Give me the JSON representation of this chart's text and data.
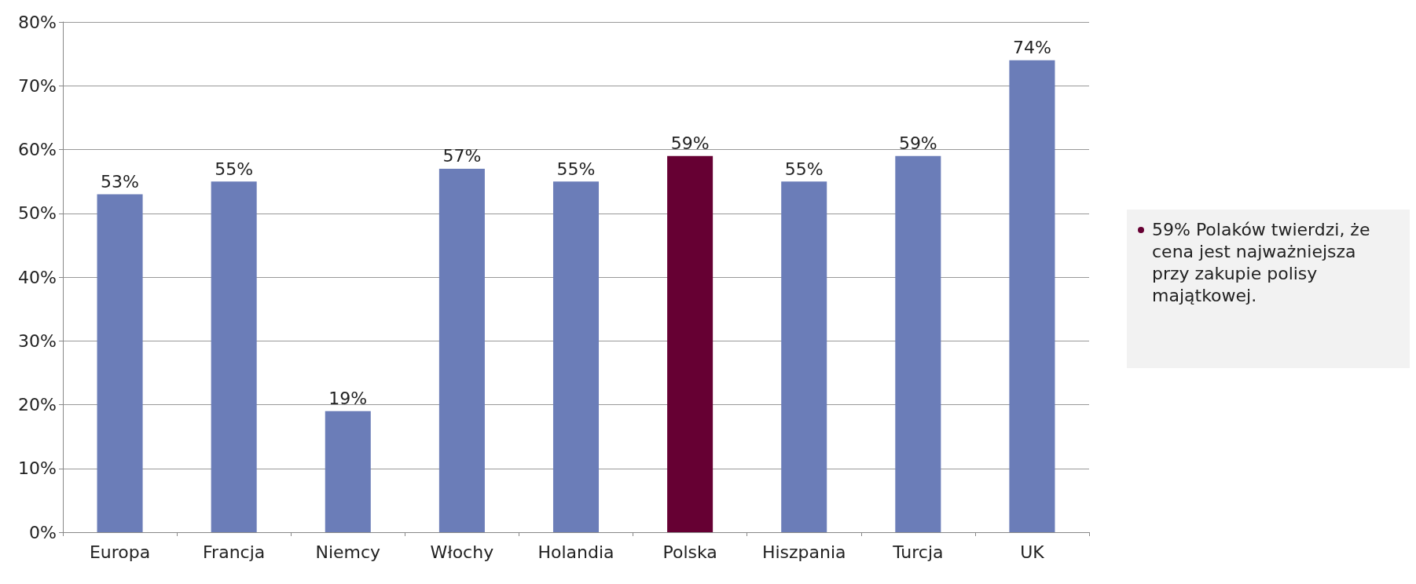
{
  "chart_data": {
    "type": "bar",
    "categories": [
      "Europa",
      "Francja",
      "Niemcy",
      "Włochy",
      "Holandia",
      "Polska",
      "Hiszpania",
      "Turcja",
      "UK"
    ],
    "values": [
      53,
      55,
      19,
      57,
      55,
      59,
      55,
      59,
      74
    ],
    "colors": [
      "#6b7db8",
      "#6b7db8",
      "#6b7db8",
      "#6b7db8",
      "#6b7db8",
      "#660033",
      "#6b7db8",
      "#6b7db8",
      "#6b7db8"
    ],
    "value_labels": [
      "53%",
      "55%",
      "19%",
      "57%",
      "55%",
      "59%",
      "55%",
      "59%",
      "74%"
    ],
    "ylim": [
      0,
      80
    ],
    "yticks": [
      {
        "value": 0,
        "label": "0%"
      },
      {
        "value": 10,
        "label": "10%"
      },
      {
        "value": 20,
        "label": "20%"
      },
      {
        "value": 30,
        "label": "30%"
      },
      {
        "value": 40,
        "label": "40%"
      },
      {
        "value": 50,
        "label": "50%"
      },
      {
        "value": 60,
        "label": "60%"
      },
      {
        "value": 70,
        "label": "70%"
      },
      {
        "value": 80,
        "label": "80%"
      }
    ],
    "grid": "y",
    "annotations": [
      "59% Polaków twierdzi, że cena jest najważniejsza przy zakupie polisy majątkowej."
    ]
  }
}
